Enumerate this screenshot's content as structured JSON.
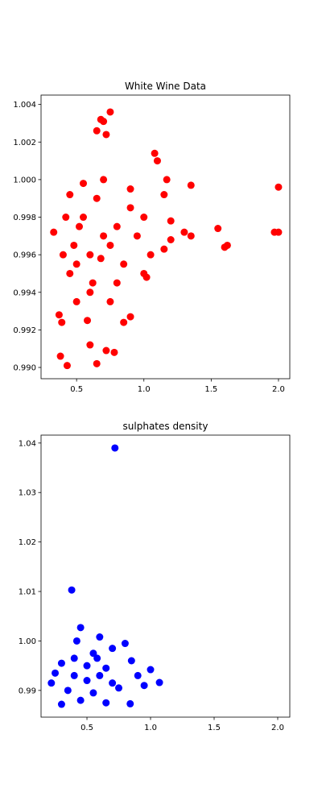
{
  "chart_data": [
    {
      "type": "scatter",
      "title": "White Wine Data",
      "color": "#ff0000",
      "x": [
        2.0,
        1.97,
        2.0,
        1.55,
        1.6,
        1.62,
        1.35,
        1.35,
        1.3,
        1.2,
        1.1,
        1.08,
        1.15,
        1.17,
        0.75,
        0.7,
        0.68,
        0.72,
        0.65,
        0.33,
        0.38,
        0.43,
        0.37,
        0.39,
        0.65,
        0.78,
        0.72,
        0.6,
        0.85,
        0.9,
        1.02,
        1.0,
        0.5,
        0.6,
        0.7,
        0.55,
        0.65,
        0.75,
        0.8,
        0.62,
        0.5,
        0.58,
        0.45,
        0.9,
        0.95,
        1.0,
        1.05,
        0.85,
        0.55,
        0.7,
        0.6,
        0.45,
        0.48,
        0.68,
        0.8,
        0.75,
        0.52,
        0.9,
        1.15,
        1.2,
        0.4,
        0.42
      ],
      "y": [
        0.9996,
        0.9972,
        0.9972,
        0.9974,
        0.9964,
        0.9965,
        0.9997,
        0.997,
        0.9972,
        0.9968,
        1.001,
        1.0014,
        0.9992,
        1.0,
        1.0036,
        1.0031,
        1.0032,
        1.0024,
        1.0026,
        0.9972,
        0.9906,
        0.9901,
        0.9928,
        0.9924,
        0.9902,
        0.9908,
        0.9909,
        0.9912,
        0.9924,
        0.9927,
        0.9948,
        0.995,
        0.9955,
        0.996,
        0.997,
        0.998,
        0.999,
        0.9965,
        0.9975,
        0.9945,
        0.9935,
        0.9925,
        0.9992,
        0.9985,
        0.997,
        0.998,
        0.996,
        0.9955,
        0.9998,
        1.0,
        0.994,
        0.995,
        0.9965,
        0.9958,
        0.9945,
        0.9935,
        0.9975,
        0.9995,
        0.9963,
        0.9978,
        0.996,
        0.998
      ],
      "xlim": [
        0.236,
        2.084
      ],
      "ylim": [
        0.9894,
        1.0045
      ],
      "xticks": [
        0.5,
        {
          "value": 1.0,
          "label": "1.0"
        },
        1.5,
        {
          "value": 2.0,
          "label": "2.0"
        }
      ],
      "yticks": [
        {
          "value": 0.99,
          "label": "0.990"
        },
        0.992,
        0.994,
        0.996,
        0.998,
        {
          "value": 1.0,
          "label": "1.000"
        },
        1.002,
        1.004
      ]
    },
    {
      "type": "scatter",
      "title": "sulphates density",
      "color": "#0000ff",
      "x": [
        0.72,
        0.38,
        0.84,
        1.07,
        0.22,
        0.3,
        0.4,
        0.45,
        0.5,
        0.6,
        0.55,
        0.7,
        0.8,
        0.9,
        1.0,
        0.35,
        0.45,
        0.65,
        0.5,
        0.6,
        0.75,
        0.85,
        0.4,
        0.3,
        0.55,
        0.65,
        0.7,
        0.95,
        0.25,
        0.42,
        0.58
      ],
      "y": [
        1.039,
        1.0103,
        0.9873,
        0.9916,
        0.9915,
        0.9872,
        0.9965,
        1.0027,
        0.995,
        0.993,
        0.9975,
        0.9985,
        0.9995,
        0.993,
        0.9942,
        0.99,
        0.988,
        0.9875,
        0.992,
        1.0008,
        0.9905,
        0.996,
        0.993,
        0.9955,
        0.9895,
        0.9945,
        0.9915,
        0.991,
        0.9935,
        1.0,
        0.9965
      ],
      "xlim": [
        0.139,
        2.095
      ],
      "ylim": [
        0.9846,
        1.0416
      ],
      "xticks": [
        0.5,
        {
          "value": 1.0,
          "label": "1.0"
        },
        1.5,
        {
          "value": 2.0,
          "label": "2.0"
        }
      ],
      "yticks": [
        0.99,
        {
          "value": 1.0,
          "label": "1.00"
        },
        1.01,
        1.02,
        1.03,
        1.04
      ]
    }
  ]
}
